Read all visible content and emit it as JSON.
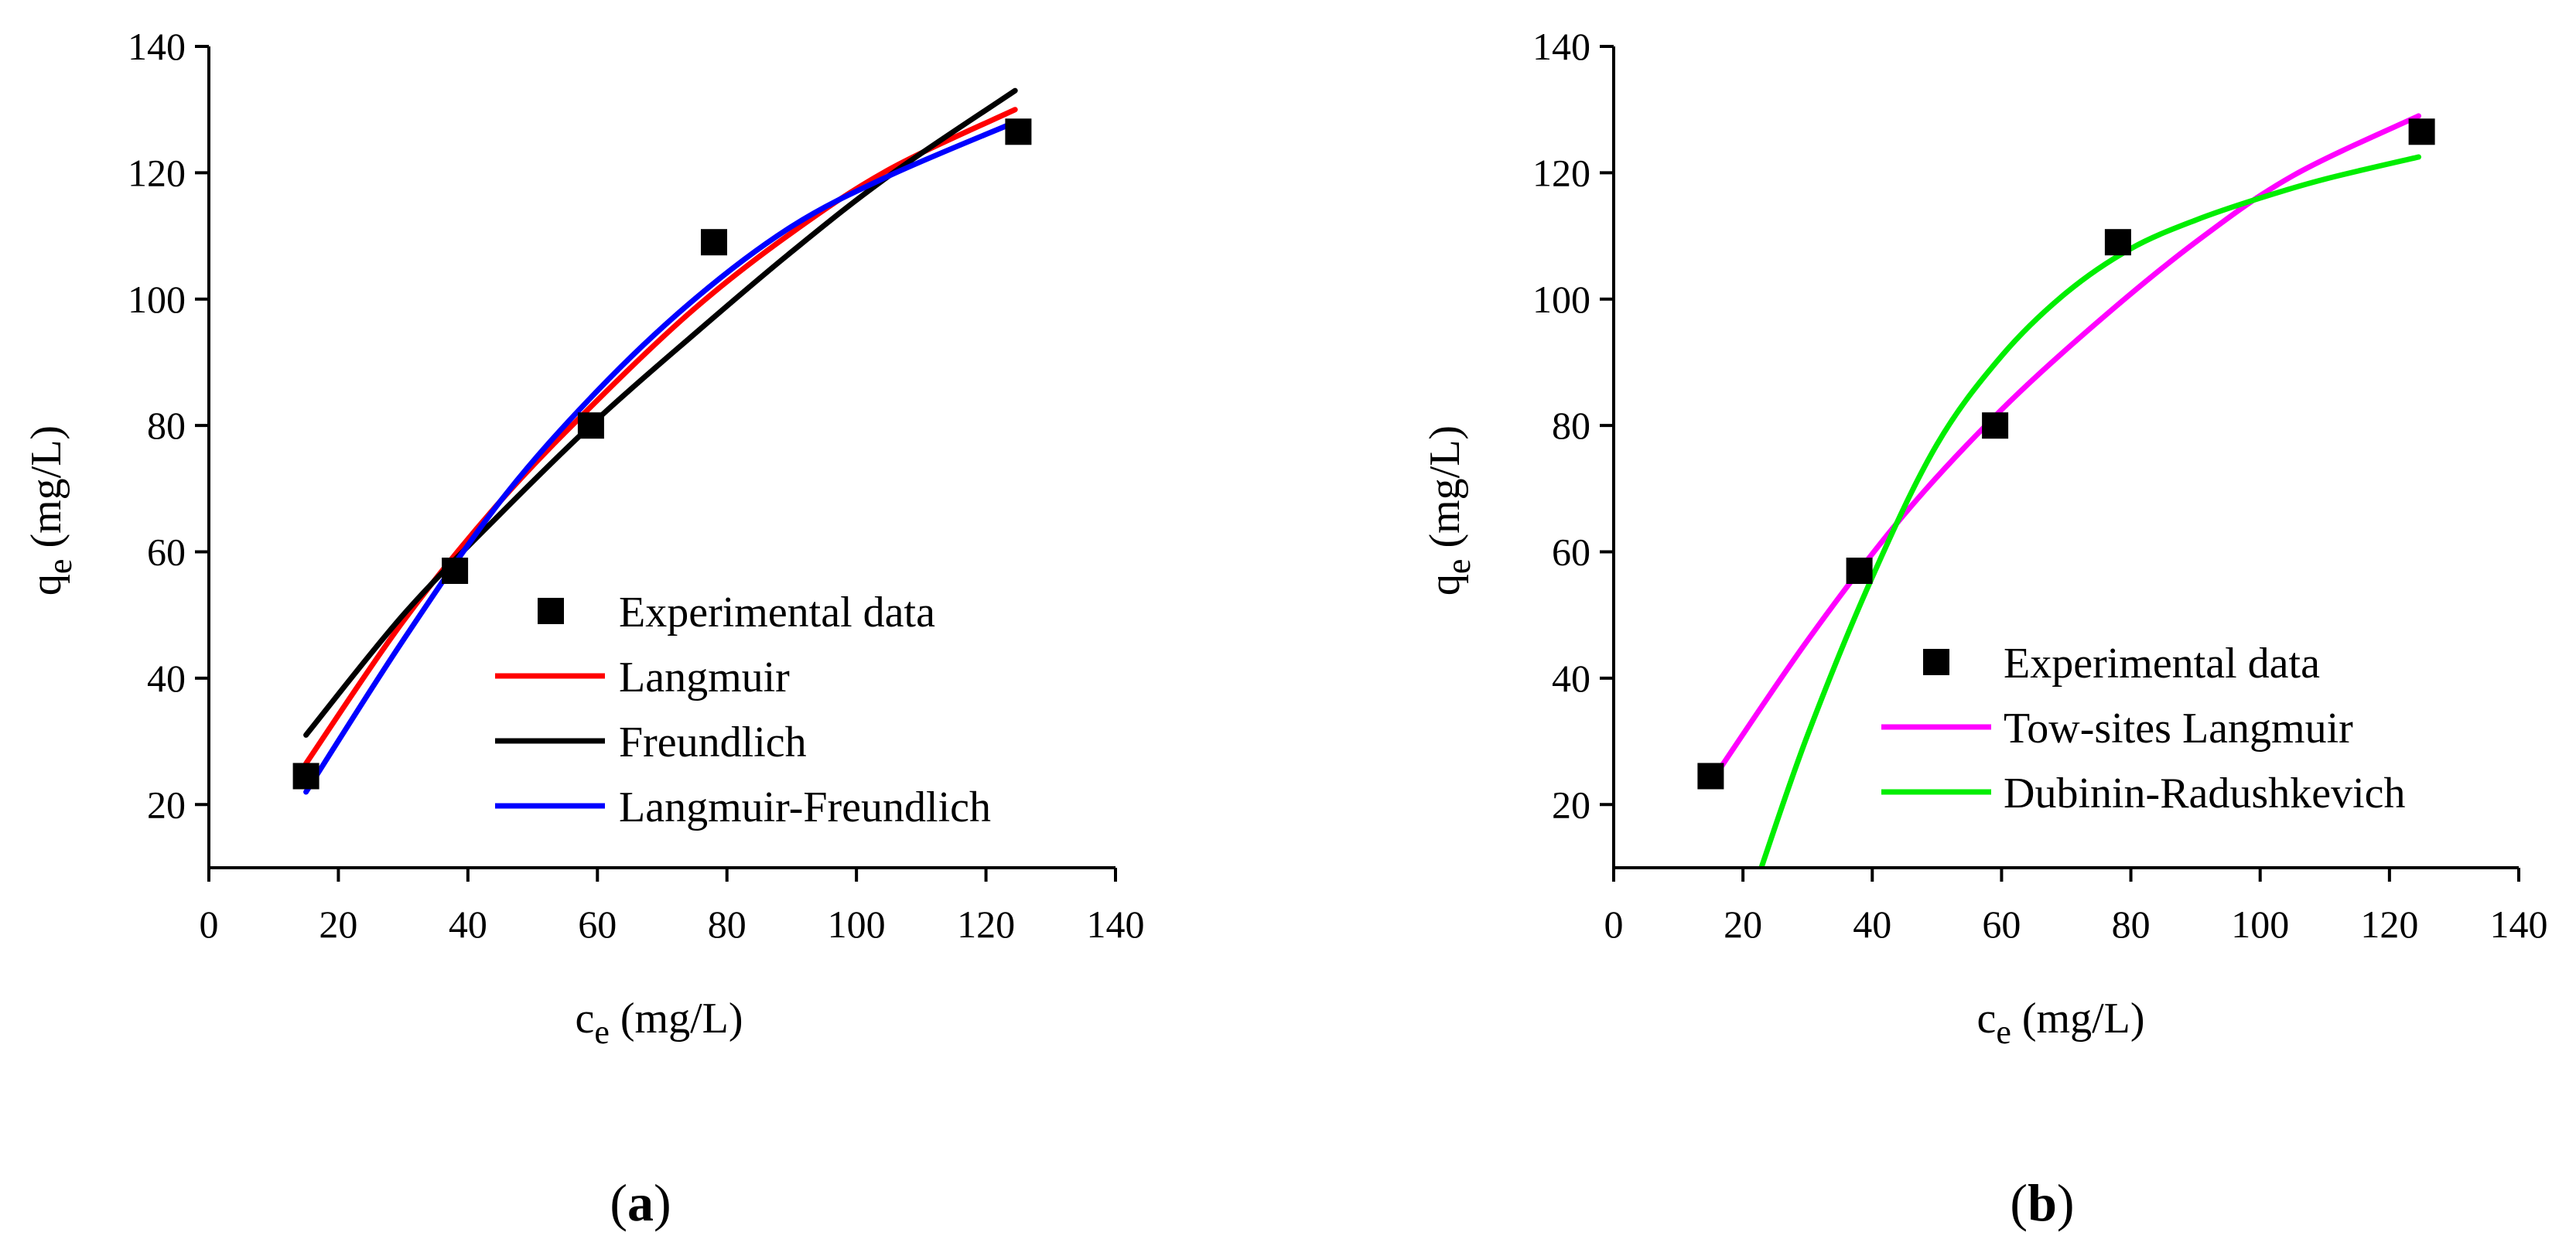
{
  "colors": {
    "langmuir": "#ff0000",
    "freundlich": "#000000",
    "langmuir_freundlich": "#0000ff",
    "two_sites_langmuir": "#ff00ff",
    "dubinin_radushkevich": "#00ee00",
    "marker": "#000000"
  },
  "chart_data": [
    {
      "id": "a",
      "type": "scatter",
      "panel_label": {
        "open": "(",
        "letter": "a",
        "close": ")"
      },
      "xlabel": {
        "main": "c",
        "sub": "e",
        "unit": " (mg/L)"
      },
      "ylabel": {
        "main": "q",
        "sub": "e",
        "unit": " (mg/L)"
      },
      "xlim": [
        0,
        140
      ],
      "ylim": [
        10,
        140
      ],
      "xticks": [
        0,
        20,
        40,
        60,
        80,
        100,
        120,
        140
      ],
      "yticks": [
        20,
        40,
        60,
        80,
        100,
        120,
        140
      ],
      "legend_position": "bottom-right",
      "experimental": {
        "name": "Experimental data",
        "x": [
          15,
          38,
          59,
          78,
          125
        ],
        "y": [
          24.5,
          57,
          80,
          109,
          126.5
        ]
      },
      "series": [
        {
          "name": "Langmuir",
          "color_key": "langmuir",
          "x": [
            15,
            30,
            45,
            60,
            75,
            90,
            105,
            124.5
          ],
          "y": [
            26.5,
            49,
            68,
            84,
            98.5,
            110.5,
            120.5,
            130
          ]
        },
        {
          "name": "Freundlich",
          "color_key": "freundlich",
          "x": [
            15,
            30,
            45,
            60,
            75,
            90,
            105,
            124.5
          ],
          "y": [
            31,
            50,
            66,
            81,
            94.5,
            107.5,
            119.5,
            133
          ]
        },
        {
          "name": "Langmuir-Freundlich",
          "color_key": "langmuir_freundlich",
          "x": [
            15,
            30,
            45,
            60,
            75,
            90,
            105,
            124.5
          ],
          "y": [
            22,
            46,
            68,
            85.5,
            100,
            111.5,
            119.5,
            128
          ]
        }
      ]
    },
    {
      "id": "b",
      "type": "scatter",
      "panel_label": {
        "open": "(",
        "letter": "b",
        "close": ")"
      },
      "xlabel": {
        "main": "c",
        "sub": "e",
        "unit": " (mg/L)"
      },
      "ylabel": {
        "main": "q",
        "sub": "e",
        "unit": " (mg/L)"
      },
      "xlim": [
        0,
        140
      ],
      "ylim": [
        10,
        140
      ],
      "xticks": [
        0,
        20,
        40,
        60,
        80,
        100,
        120,
        140
      ],
      "yticks": [
        20,
        40,
        60,
        80,
        100,
        120,
        140
      ],
      "legend_position": "bottom-right",
      "experimental": {
        "name": "Experimental data",
        "x": [
          15,
          38,
          59,
          78,
          125
        ],
        "y": [
          24.5,
          57,
          80,
          109,
          126.5
        ]
      },
      "series": [
        {
          "name": "Tow-sites Langmuir",
          "color_key": "two_sites_langmuir",
          "x": [
            15,
            30,
            45,
            60,
            75,
            90,
            105,
            124.5
          ],
          "y": [
            23.5,
            46,
            66,
            82.5,
            96.5,
            109,
            119.5,
            129
          ]
        },
        {
          "name": "Dubinin-Radushkevich",
          "color_key": "dubinin_radushkevich",
          "x": [
            22.5,
            30,
            40,
            50,
            60,
            70,
            80,
            90,
            100,
            110,
            124.5
          ],
          "y": [
            9,
            31,
            56,
            77,
            91,
            101,
            108,
            112.5,
            116,
            119,
            122.5
          ]
        }
      ]
    }
  ]
}
